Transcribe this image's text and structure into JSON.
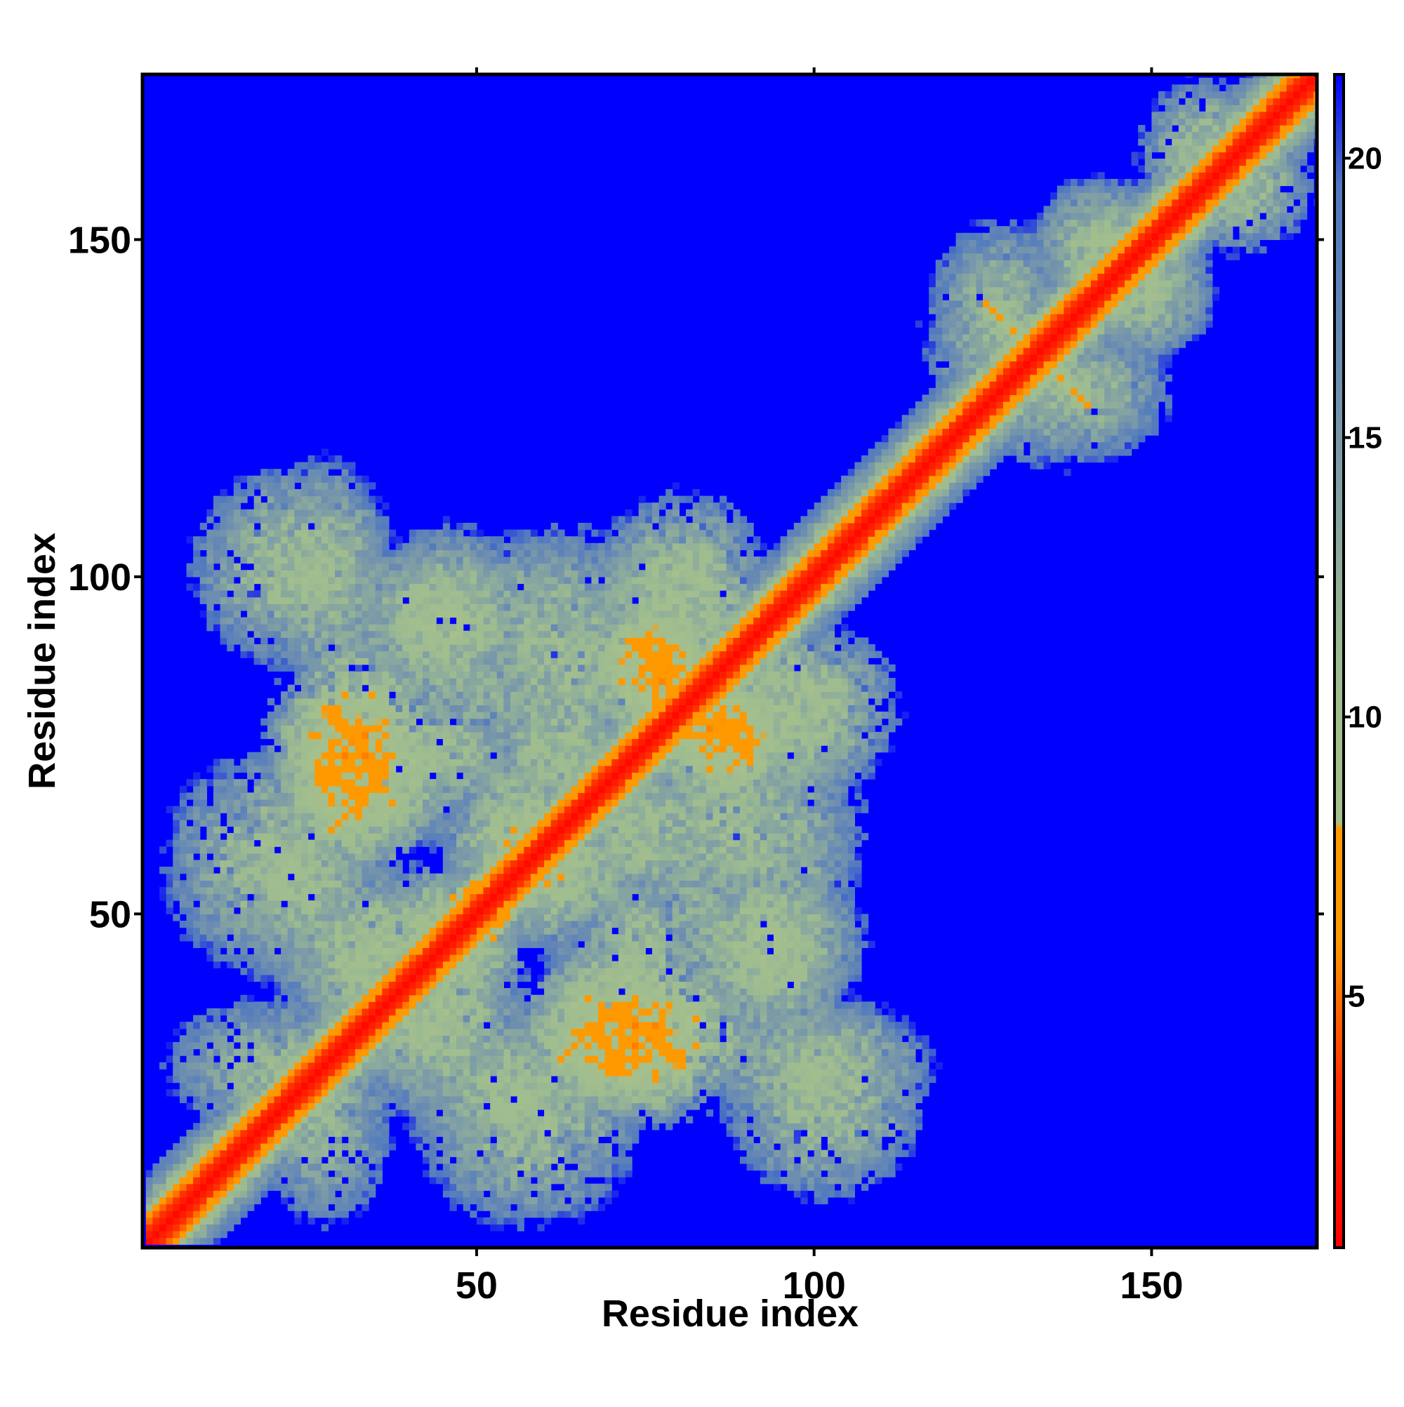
{
  "chart_data": {
    "type": "heatmap",
    "title": "",
    "xlabel": "Residue index",
    "ylabel": "Residue index",
    "n_residues": 174,
    "xlim": [
      1,
      174
    ],
    "ylim": [
      1,
      174
    ],
    "x_ticks": [
      50,
      100,
      150
    ],
    "y_ticks": [
      50,
      100,
      150
    ],
    "x_tick_labels": [
      "50",
      "100",
      "150"
    ],
    "y_tick_labels": [
      "50",
      "100",
      "150"
    ],
    "colorbar": {
      "range": [
        0.5,
        21.5
      ],
      "ticks": [
        5,
        10,
        15,
        20
      ],
      "tick_labels": [
        "5",
        "10",
        "15",
        "20"
      ],
      "stops": [
        {
          "value": 0.5,
          "color": "#ff0000"
        },
        {
          "value": 3.5,
          "color": "#ff3300"
        },
        {
          "value": 6.0,
          "color": "#ff9900"
        },
        {
          "value": 8.0,
          "color": "#ff9900"
        },
        {
          "value": 8.1,
          "color": "#a6c08c"
        },
        {
          "value": 11.0,
          "color": "#9ebc90"
        },
        {
          "value": 16.0,
          "color": "#6f8fb0"
        },
        {
          "value": 19.5,
          "color": "#4f78c0"
        },
        {
          "value": 21.5,
          "color": "#0000ff"
        }
      ],
      "background_color": "#0000ff"
    },
    "description_values": {
      "diagonal_band_halfwidth": 2,
      "background_value": 21
    },
    "contact_clusters": [
      {
        "x": 22,
        "y": 101,
        "sx": 7,
        "sy": 7,
        "v": 11
      },
      {
        "x": 44,
        "y": 93,
        "sx": 8,
        "sy": 6,
        "v": 11
      },
      {
        "x": 56,
        "y": 96,
        "sx": 7,
        "sy": 5,
        "v": 13
      },
      {
        "x": 77,
        "y": 97,
        "sx": 7,
        "sy": 6,
        "v": 12
      },
      {
        "x": 32,
        "y": 73,
        "sx": 6,
        "sy": 8,
        "v": 7
      },
      {
        "x": 44,
        "y": 74,
        "sx": 6,
        "sy": 5,
        "v": 11
      },
      {
        "x": 62,
        "y": 75,
        "sx": 6,
        "sy": 6,
        "v": 11
      },
      {
        "x": 76,
        "y": 86,
        "sx": 5,
        "sy": 5,
        "v": 7
      },
      {
        "x": 86,
        "y": 77,
        "sx": 5,
        "sy": 5,
        "v": 7
      },
      {
        "x": 97,
        "y": 80,
        "sx": 7,
        "sy": 6,
        "v": 10
      },
      {
        "x": 20,
        "y": 57,
        "sx": 8,
        "sy": 8,
        "v": 11
      },
      {
        "x": 57,
        "y": 60,
        "sx": 6,
        "sy": 5,
        "v": 9
      },
      {
        "x": 64,
        "y": 57,
        "sx": 6,
        "sy": 6,
        "v": 11
      },
      {
        "x": 88,
        "y": 62,
        "sx": 9,
        "sy": 7,
        "v": 11
      },
      {
        "x": 34,
        "y": 44,
        "sx": 7,
        "sy": 6,
        "v": 10
      },
      {
        "x": 44,
        "y": 46,
        "sx": 5,
        "sy": 5,
        "v": 9
      },
      {
        "x": 70,
        "y": 40,
        "sx": 5,
        "sy": 4,
        "v": 11
      },
      {
        "x": 92,
        "y": 45,
        "sx": 7,
        "sy": 6,
        "v": 10
      },
      {
        "x": 20,
        "y": 27,
        "sx": 8,
        "sy": 5,
        "v": 12
      },
      {
        "x": 40,
        "y": 33,
        "sx": 6,
        "sy": 5,
        "v": 11
      },
      {
        "x": 55,
        "y": 24,
        "sx": 8,
        "sy": 6,
        "v": 11
      },
      {
        "x": 70,
        "y": 30,
        "sx": 7,
        "sy": 5,
        "v": 8
      },
      {
        "x": 100,
        "y": 27,
        "sx": 8,
        "sy": 5,
        "v": 11
      },
      {
        "x": 70,
        "y": 63,
        "sx": 5,
        "sy": 8,
        "v": 12
      },
      {
        "x": 52,
        "y": 82,
        "sx": 6,
        "sy": 6,
        "v": 13
      },
      {
        "x": 128,
        "y": 135,
        "sx": 6,
        "sy": 7,
        "v": 12
      },
      {
        "x": 140,
        "y": 127,
        "sx": 6,
        "sy": 5,
        "v": 12
      },
      {
        "x": 142,
        "y": 148,
        "sx": 5,
        "sy": 5,
        "v": 11
      },
      {
        "x": 148,
        "y": 142,
        "sx": 5,
        "sy": 5,
        "v": 11
      },
      {
        "x": 158,
        "y": 163,
        "sx": 5,
        "sy": 5,
        "v": 11
      }
    ],
    "contact_strands": [
      {
        "x0": 27,
        "y0": 80,
        "x1": 35,
        "y1": 72,
        "v": 6
      },
      {
        "x0": 35,
        "y0": 70,
        "x1": 29,
        "y1": 63,
        "v": 6
      },
      {
        "x0": 72,
        "y0": 90,
        "x1": 80,
        "y1": 84,
        "v": 6
      },
      {
        "x0": 84,
        "y0": 80,
        "x1": 90,
        "y1": 73,
        "v": 6
      },
      {
        "x0": 62,
        "y0": 28,
        "x1": 70,
        "y1": 36,
        "v": 6
      },
      {
        "x0": 70,
        "y0": 36,
        "x1": 80,
        "y1": 27,
        "v": 6
      },
      {
        "x0": 46,
        "y0": 52,
        "x1": 60,
        "y1": 60,
        "v": 7
      },
      {
        "x0": 125,
        "y0": 140,
        "x1": 132,
        "y1": 133,
        "v": 7
      }
    ]
  }
}
